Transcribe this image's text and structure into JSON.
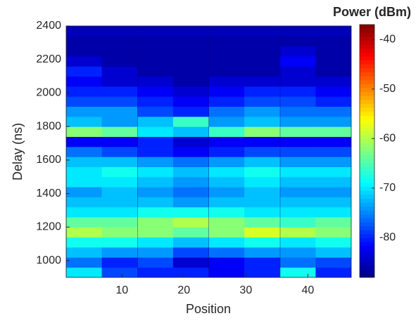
{
  "chart_data": {
    "type": "heatmap",
    "xlabel": "Position",
    "ylabel": "Delay (ns)",
    "colorbar_label": "Power (dBm)",
    "x": [
      3.9,
      9.6,
      15.4,
      21.1,
      26.9,
      32.6,
      38.4,
      44.1
    ],
    "y": [
      930,
      990,
      1050,
      1110,
      1170,
      1230,
      1290,
      1350,
      1410,
      1470,
      1530,
      1590,
      1650,
      1710,
      1770,
      1830,
      1890,
      1950,
      2010,
      2070,
      2130,
      2190,
      2250,
      2310,
      2370
    ],
    "z": [
      [
        -70,
        -78,
        -80,
        -80,
        -82,
        -80,
        -68,
        -80
      ],
      [
        -76,
        -80,
        -78,
        -84,
        -82,
        -80,
        -76,
        -78
      ],
      [
        -72,
        -74,
        -74,
        -78,
        -76,
        -74,
        -74,
        -72
      ],
      [
        -68,
        -68,
        -70,
        -72,
        -70,
        -68,
        -70,
        -68
      ],
      [
        -60,
        -62,
        -62,
        -64,
        -62,
        -58,
        -60,
        -62
      ],
      [
        -64,
        -64,
        -62,
        -60,
        -62,
        -64,
        -66,
        -64
      ],
      [
        -70,
        -70,
        -68,
        -68,
        -68,
        -70,
        -70,
        -70
      ],
      [
        -72,
        -72,
        -72,
        -74,
        -72,
        -72,
        -72,
        -72
      ],
      [
        -74,
        -72,
        -74,
        -76,
        -74,
        -72,
        -74,
        -74
      ],
      [
        -70,
        -70,
        -72,
        -74,
        -72,
        -70,
        -72,
        -72
      ],
      [
        -70,
        -68,
        -70,
        -72,
        -70,
        -68,
        -70,
        -70
      ],
      [
        -72,
        -72,
        -74,
        -76,
        -74,
        -72,
        -74,
        -74
      ],
      [
        -76,
        -78,
        -80,
        -82,
        -80,
        -78,
        -78,
        -78
      ],
      [
        -82,
        -82,
        -80,
        -84,
        -82,
        -82,
        -82,
        -82
      ],
      [
        -62,
        -64,
        -70,
        -72,
        -66,
        -62,
        -64,
        -64
      ],
      [
        -72,
        -74,
        -72,
        -66,
        -74,
        -72,
        -74,
        -74
      ],
      [
        -74,
        -74,
        -78,
        -80,
        -76,
        -74,
        -76,
        -76
      ],
      [
        -78,
        -78,
        -80,
        -82,
        -80,
        -78,
        -78,
        -80
      ],
      [
        -80,
        -80,
        -82,
        -84,
        -82,
        -80,
        -80,
        -82
      ],
      [
        -82,
        -84,
        -84,
        -86,
        -84,
        -84,
        -84,
        -84
      ],
      [
        -80,
        -84,
        -86,
        -86,
        -86,
        -86,
        -84,
        -86
      ],
      [
        -84,
        -86,
        -86,
        -86,
        -86,
        -86,
        -82,
        -86
      ],
      [
        -86,
        -86,
        -86,
        -86,
        -86,
        -86,
        -84,
        -86
      ],
      [
        -86,
        -86,
        -86,
        -86,
        -86,
        -86,
        -86,
        -86
      ],
      [
        -85,
        -85,
        -85,
        -85,
        -85,
        -85,
        -85,
        -85
      ]
    ],
    "xlim": [
      1,
      47
    ],
    "xticks": [
      10,
      20,
      30,
      40
    ],
    "ylim": [
      900,
      2400
    ],
    "yticks": [
      1000,
      1200,
      1400,
      1600,
      1800,
      2000,
      2200,
      2400
    ],
    "clim": [
      -88,
      -37
    ],
    "cticks": [
      -80,
      -70,
      -60,
      -50,
      -40
    ],
    "colormap": "jet"
  }
}
